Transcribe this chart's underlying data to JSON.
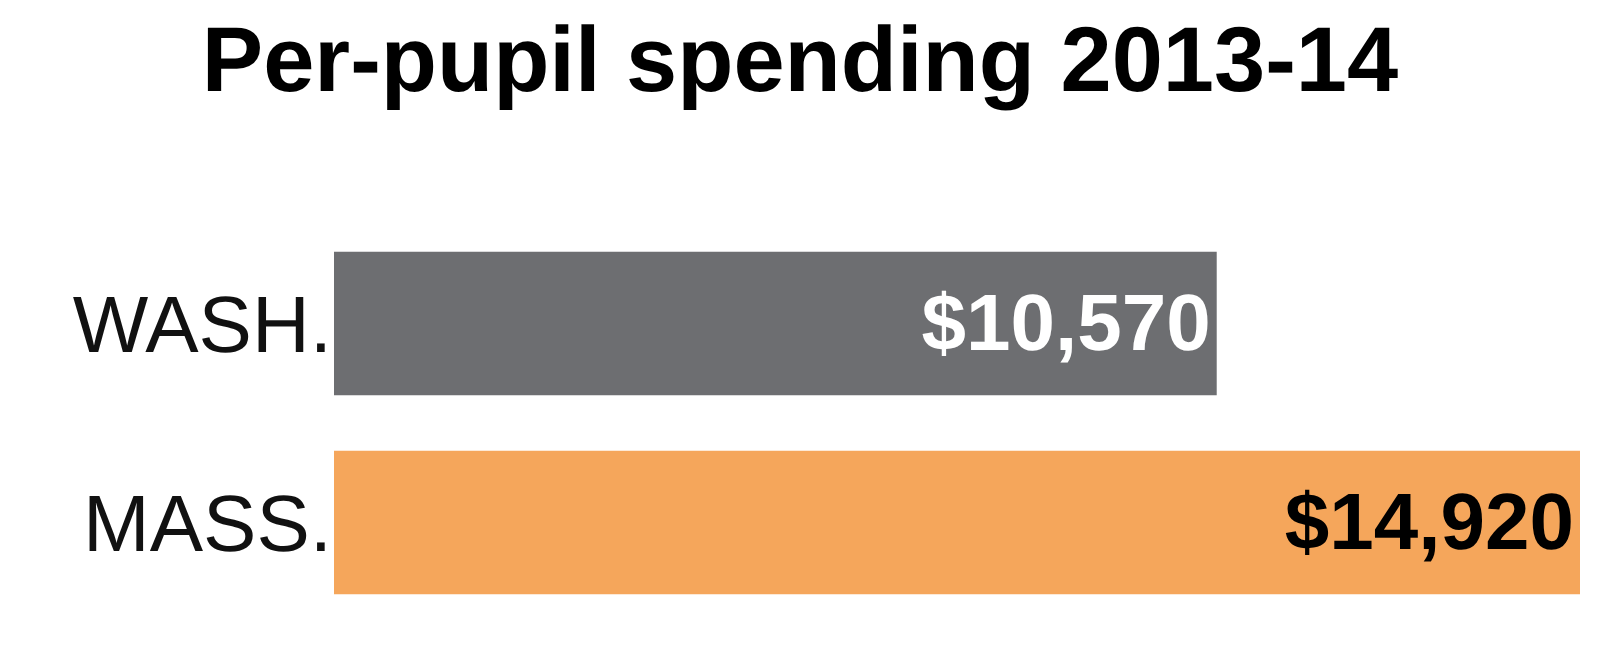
{
  "chart_data": {
    "type": "bar",
    "orientation": "horizontal",
    "title": "Per-pupil spending 2013-14",
    "categories": [
      "WASH.",
      "MASS."
    ],
    "values": [
      10570,
      14920
    ],
    "colors": [
      "#6d6e71",
      "#f5a65b"
    ],
    "value_labels": [
      "$10,570",
      "$14,920"
    ],
    "tick_labels": "y"
  }
}
